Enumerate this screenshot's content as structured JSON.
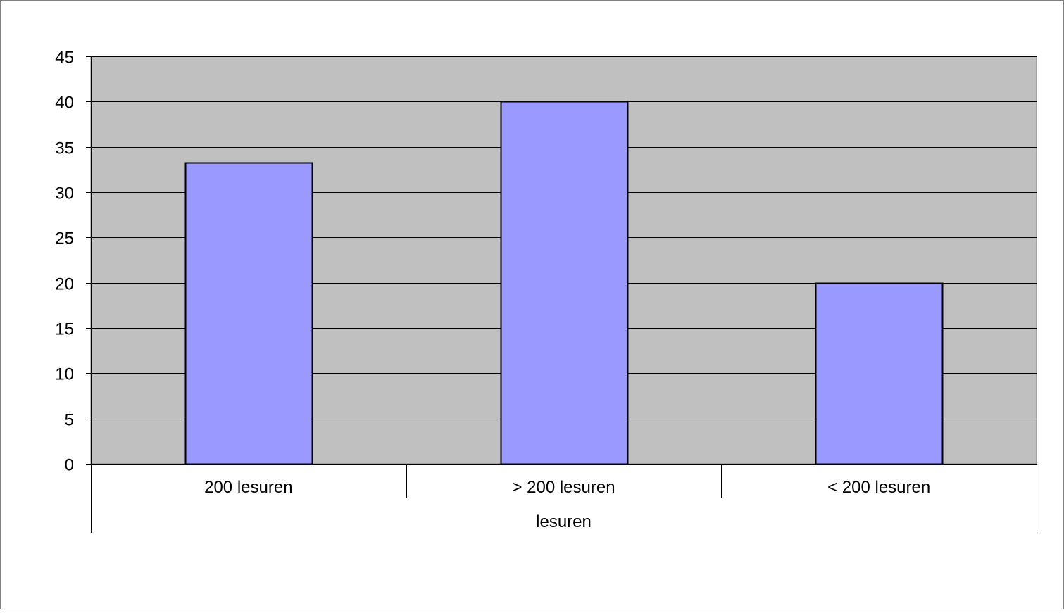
{
  "chart_data": {
    "type": "bar",
    "categories": [
      "200 lesuren",
      "> 200 lesuren",
      "< 200 lesuren"
    ],
    "values": [
      33.3,
      40,
      20
    ],
    "group_label": "lesuren",
    "title": "",
    "xlabel": "",
    "ylabel": "",
    "ylim": [
      0,
      45
    ],
    "yticks": [
      0,
      5,
      10,
      15,
      20,
      25,
      30,
      35,
      40,
      45
    ],
    "grid": true,
    "legend": "none",
    "colors": {
      "bar_fill": "#9999ff",
      "bar_stroke": "#000000",
      "plot_background": "#c0c0c0",
      "gridline": "#000000",
      "outer_border": "#808080"
    }
  }
}
